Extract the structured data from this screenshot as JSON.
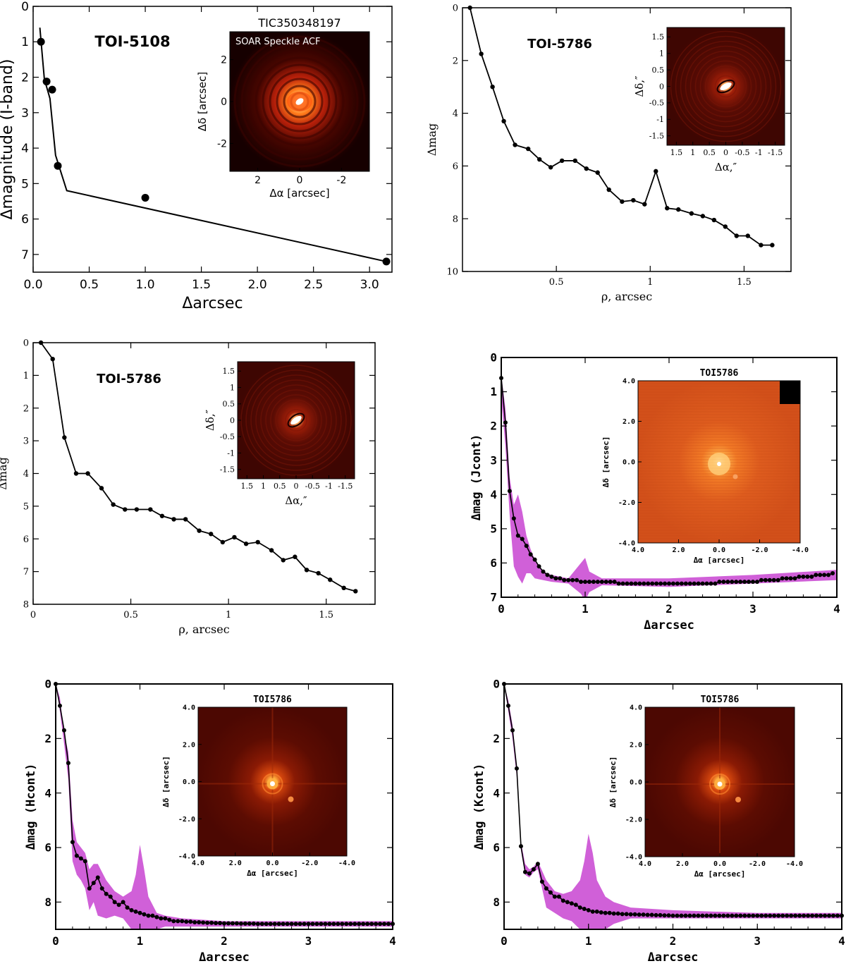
{
  "chart_data": [
    {
      "id": "p1",
      "type": "line",
      "style": "sans",
      "title": "TOI-5108",
      "xlabel": "Δarcsec",
      "ylabel": "Δmagnitude (I-band)",
      "xlim": [
        0,
        3.2
      ],
      "ylim": [
        0,
        7.5
      ],
      "inverted_y": true,
      "xticks": [
        0.0,
        0.5,
        1.0,
        1.5,
        2.0,
        2.5,
        3.0
      ],
      "xtick_labels": [
        "0.0",
        "0.5",
        "1.0",
        "1.5",
        "2.0",
        "2.5",
        "3.0"
      ],
      "yticks": [
        0,
        1,
        2,
        3,
        4,
        5,
        6,
        7
      ],
      "ytick_labels": [
        "0",
        "1",
        "2",
        "3",
        "4",
        "5",
        "6",
        "7"
      ],
      "curve": {
        "x": [
          0.06,
          0.1,
          0.15,
          0.2,
          0.3,
          3.15
        ],
        "y": [
          0.6,
          2.05,
          2.6,
          4.2,
          5.2,
          7.2
        ]
      },
      "points": {
        "x": [
          0.07,
          0.12,
          0.17,
          0.22,
          1.0,
          3.15
        ],
        "y": [
          1.0,
          2.12,
          2.35,
          4.5,
          5.4,
          7.2
        ]
      },
      "inset": {
        "title": "TIC350348197",
        "label": "SOAR Speckle ACF",
        "xlabel": "Δα [arcsec]",
        "ylabel": "Δδ [arcsec]",
        "xticks": [
          "2",
          "0",
          "-2"
        ],
        "yticks": [
          "2",
          "0",
          "-2"
        ]
      }
    },
    {
      "id": "p2",
      "type": "line",
      "style": "serif",
      "title": "TOI-5786",
      "xlabel": "ρ, arcsec",
      "ylabel": "Δmag",
      "xlim": [
        0,
        1.75
      ],
      "ylim": [
        0,
        10
      ],
      "inverted_y": true,
      "xticks": [
        0.5,
        1,
        1.5
      ],
      "xtick_labels": [
        "0.5",
        "1",
        "1.5"
      ],
      "yticks": [
        0,
        2,
        4,
        6,
        8,
        10
      ],
      "ytick_labels": [
        "0",
        "2",
        "4",
        "6",
        "8",
        "10"
      ],
      "curve": {
        "x": [
          0.04,
          0.1,
          0.16,
          0.22,
          0.28,
          0.35,
          0.41,
          0.47,
          0.53,
          0.6,
          0.66,
          0.72,
          0.78,
          0.85,
          0.91,
          0.97,
          1.03,
          1.09,
          1.15,
          1.22,
          1.28,
          1.34,
          1.4,
          1.46,
          1.52,
          1.59,
          1.65
        ],
        "y": [
          0,
          1.75,
          3.0,
          4.3,
          5.2,
          5.35,
          5.75,
          6.05,
          5.8,
          5.8,
          6.1,
          6.25,
          6.9,
          7.35,
          7.3,
          7.45,
          6.2,
          7.6,
          7.65,
          7.8,
          7.9,
          8.05,
          8.3,
          8.65,
          8.65,
          9.0,
          9.0
        ]
      },
      "inset": {
        "xlabel": "Δα,″",
        "ylabel": "Δδ,″",
        "xticks": [
          "1.5",
          "1",
          "0.5",
          "0",
          "-0.5",
          "-1",
          "-1.5"
        ],
        "yticks": [
          "1.5",
          "1",
          "0.5",
          "0",
          "-0.5",
          "-1",
          "-1.5"
        ]
      }
    },
    {
      "id": "p3",
      "type": "line",
      "style": "serif",
      "title": "TOI-5786",
      "xlabel": "ρ, arcsec",
      "ylabel": "Δmag",
      "xlim": [
        0,
        1.75
      ],
      "ylim": [
        0,
        8
      ],
      "inverted_y": true,
      "xticks": [
        0,
        0.5,
        1,
        1.5
      ],
      "xtick_labels": [
        "0",
        "0.5",
        "1",
        "1.5"
      ],
      "yticks": [
        0,
        1,
        2,
        3,
        4,
        5,
        6,
        7,
        8
      ],
      "ytick_labels": [
        "0",
        "1",
        "2",
        "3",
        "4",
        "5",
        "6",
        "7",
        "8"
      ],
      "curve": {
        "x": [
          0.04,
          0.1,
          0.16,
          0.22,
          0.28,
          0.35,
          0.41,
          0.47,
          0.53,
          0.6,
          0.66,
          0.72,
          0.78,
          0.85,
          0.91,
          0.97,
          1.03,
          1.09,
          1.15,
          1.22,
          1.28,
          1.34,
          1.4,
          1.46,
          1.52,
          1.59,
          1.65
        ],
        "y": [
          0,
          0.5,
          2.9,
          4.0,
          4.0,
          4.45,
          4.95,
          5.1,
          5.1,
          5.1,
          5.3,
          5.4,
          5.4,
          5.75,
          5.85,
          6.1,
          5.95,
          6.15,
          6.1,
          6.35,
          6.65,
          6.55,
          6.95,
          7.05,
          7.25,
          7.5,
          7.6
        ]
      },
      "inset": {
        "xlabel": "Δα,″",
        "ylabel": "Δδ,″",
        "xticks": [
          "1.5",
          "1",
          "0.5",
          "0",
          "-0.5",
          "-1",
          "-1.5"
        ],
        "yticks": [
          "1.5",
          "1",
          "0.5",
          "0",
          "-0.5",
          "-1",
          "-1.5"
        ]
      }
    },
    {
      "id": "p4",
      "type": "line",
      "style": "bold",
      "title": "",
      "xlabel": "Δarcsec",
      "ylabel": "Δmag (Jcont)",
      "xlim": [
        0,
        4
      ],
      "ylim": [
        0,
        7
      ],
      "inverted_y": true,
      "xticks": [
        0,
        1,
        2,
        3,
        4
      ],
      "xtick_labels": [
        "0",
        "1",
        "2",
        "3",
        "4"
      ],
      "yticks": [
        0,
        1,
        2,
        3,
        4,
        5,
        6,
        7
      ],
      "ytick_labels": [
        "0",
        "1",
        "2",
        "3",
        "4",
        "5",
        "6",
        "7"
      ],
      "band": {
        "x": [
          0,
          0.05,
          0.1,
          0.15,
          0.2,
          0.25,
          0.3,
          0.35,
          0.4,
          0.5,
          0.6,
          0.8,
          0.95,
          1.0,
          1.05,
          1.2,
          2.0,
          3.0,
          4.0
        ],
        "lo": [
          0.5,
          1.5,
          3.5,
          4.3,
          4.0,
          4.5,
          5.2,
          5.6,
          5.9,
          6.25,
          6.35,
          6.45,
          6.0,
          5.85,
          6.25,
          6.45,
          6.45,
          6.35,
          6.2
        ],
        "hi": [
          1.2,
          2.6,
          4.6,
          6.1,
          6.4,
          6.6,
          6.3,
          6.3,
          6.45,
          6.5,
          6.55,
          6.6,
          6.9,
          7.1,
          6.85,
          6.65,
          6.7,
          6.6,
          6.5
        ]
      },
      "curve": {
        "x": [
          0.0,
          0.05,
          0.1,
          0.15,
          0.2,
          0.25,
          0.3,
          0.35,
          0.4,
          0.45,
          0.5,
          0.55,
          0.6,
          0.65,
          0.7,
          0.75,
          0.8,
          0.85,
          0.9,
          0.95,
          1.0,
          1.05,
          1.1,
          1.15,
          1.2,
          1.25,
          1.3,
          1.35,
          1.4,
          1.45,
          1.5,
          1.55,
          1.6,
          1.65,
          1.7,
          1.75,
          1.8,
          1.85,
          1.9,
          1.95,
          2.0,
          2.05,
          2.1,
          2.15,
          2.2,
          2.25,
          2.3,
          2.35,
          2.4,
          2.45,
          2.5,
          2.55,
          2.6,
          2.65,
          2.7,
          2.75,
          2.8,
          2.85,
          2.9,
          2.95,
          3.0,
          3.05,
          3.1,
          3.15,
          3.2,
          3.25,
          3.3,
          3.35,
          3.4,
          3.45,
          3.5,
          3.55,
          3.6,
          3.65,
          3.7,
          3.75,
          3.8,
          3.85,
          3.9,
          3.95
        ],
        "y": [
          0.6,
          1.9,
          3.9,
          4.7,
          5.2,
          5.3,
          5.5,
          5.75,
          5.9,
          6.1,
          6.25,
          6.35,
          6.4,
          6.45,
          6.45,
          6.5,
          6.5,
          6.5,
          6.5,
          6.55,
          6.55,
          6.55,
          6.55,
          6.55,
          6.55,
          6.55,
          6.55,
          6.55,
          6.6,
          6.6,
          6.6,
          6.6,
          6.6,
          6.6,
          6.6,
          6.6,
          6.6,
          6.6,
          6.6,
          6.6,
          6.6,
          6.6,
          6.6,
          6.6,
          6.6,
          6.6,
          6.6,
          6.6,
          6.6,
          6.6,
          6.6,
          6.6,
          6.55,
          6.55,
          6.55,
          6.55,
          6.55,
          6.55,
          6.55,
          6.55,
          6.55,
          6.55,
          6.5,
          6.5,
          6.5,
          6.5,
          6.5,
          6.45,
          6.45,
          6.45,
          6.45,
          6.4,
          6.4,
          6.4,
          6.4,
          6.35,
          6.35,
          6.35,
          6.35,
          6.3
        ]
      },
      "inset": {
        "title": "TOI5786",
        "xlabel": "Δα [arcsec]",
        "ylabel": "Δδ [arcsec]",
        "xticks": [
          "4.0",
          "2.0",
          "0.0",
          "-2.0",
          "-4.0"
        ],
        "yticks": [
          "4.0",
          "2.0",
          "0.0",
          "-2.0",
          "-4.0"
        ]
      }
    },
    {
      "id": "p5",
      "type": "line",
      "style": "bold",
      "title": "",
      "xlabel": "Δarcsec",
      "ylabel": "Δmag (Hcont)",
      "xlim": [
        0,
        4
      ],
      "ylim": [
        0,
        9
      ],
      "inverted_y": true,
      "xticks": [
        0,
        1,
        2,
        3,
        4
      ],
      "xtick_labels": [
        "0",
        "1",
        "2",
        "3",
        "4"
      ],
      "yticks": [
        0,
        2,
        4,
        6,
        8
      ],
      "ytick_labels": [
        "0",
        "2",
        "4",
        "6",
        "8"
      ],
      "band": {
        "x": [
          0,
          0.05,
          0.1,
          0.15,
          0.2,
          0.25,
          0.3,
          0.35,
          0.4,
          0.45,
          0.5,
          0.6,
          0.7,
          0.8,
          0.9,
          0.95,
          1.0,
          1.05,
          1.1,
          1.2,
          1.3,
          1.5,
          2.0,
          3.0,
          4.0
        ],
        "lo": [
          0.0,
          0.5,
          1.8,
          2.5,
          5.0,
          5.8,
          6.0,
          6.2,
          6.8,
          6.6,
          6.6,
          7.2,
          7.6,
          7.8,
          7.6,
          7.0,
          5.9,
          6.8,
          7.8,
          8.4,
          8.5,
          8.6,
          8.7,
          8.7,
          8.7
        ],
        "hi": [
          0.0,
          1.0,
          2.2,
          3.5,
          6.5,
          7.0,
          7.2,
          7.5,
          8.3,
          8.0,
          8.5,
          8.6,
          8.5,
          8.6,
          9.0,
          9.0,
          9.0,
          9.0,
          9.0,
          9.0,
          8.9,
          8.9,
          8.9,
          8.9,
          8.9
        ]
      },
      "curve": {
        "x": [
          0.0,
          0.05,
          0.1,
          0.15,
          0.2,
          0.25,
          0.3,
          0.35,
          0.4,
          0.45,
          0.5,
          0.55,
          0.6,
          0.65,
          0.7,
          0.75,
          0.8,
          0.85,
          0.9,
          0.95,
          1.0,
          1.05,
          1.1,
          1.15,
          1.2,
          1.25,
          1.3,
          1.35,
          1.4,
          1.45,
          1.5,
          1.55,
          1.6,
          1.65,
          1.7,
          1.75,
          1.8,
          1.85,
          1.9,
          1.95,
          2.0,
          2.05,
          2.1,
          2.15,
          2.2,
          2.25,
          2.3,
          2.35,
          2.4,
          2.45,
          2.5,
          2.55,
          2.6,
          2.65,
          2.7,
          2.75,
          2.8,
          2.85,
          2.9,
          2.95,
          3.0,
          3.05,
          3.1,
          3.15,
          3.2,
          3.25,
          3.3,
          3.35,
          3.4,
          3.45,
          3.5,
          3.55,
          3.6,
          3.65,
          3.7,
          3.75,
          3.8,
          3.85,
          3.9,
          3.95,
          4.0
        ],
        "y": [
          0.0,
          0.8,
          1.7,
          2.9,
          5.8,
          6.3,
          6.4,
          6.5,
          7.5,
          7.3,
          7.1,
          7.5,
          7.7,
          7.8,
          8.0,
          8.1,
          8.0,
          8.2,
          8.3,
          8.35,
          8.4,
          8.45,
          8.5,
          8.5,
          8.55,
          8.6,
          8.6,
          8.65,
          8.7,
          8.7,
          8.7,
          8.72,
          8.72,
          8.74,
          8.74,
          8.75,
          8.76,
          8.76,
          8.77,
          8.77,
          8.78,
          8.78,
          8.78,
          8.78,
          8.79,
          8.79,
          8.79,
          8.79,
          8.8,
          8.8,
          8.8,
          8.8,
          8.8,
          8.8,
          8.8,
          8.8,
          8.8,
          8.8,
          8.8,
          8.8,
          8.8,
          8.8,
          8.8,
          8.8,
          8.8,
          8.8,
          8.8,
          8.8,
          8.8,
          8.8,
          8.8,
          8.8,
          8.8,
          8.8,
          8.8,
          8.8,
          8.8,
          8.8,
          8.8,
          8.8,
          8.8
        ]
      },
      "inset": {
        "title": "TOI5786",
        "xlabel": "Δα [arcsec]",
        "ylabel": "Δδ [arcsec]",
        "xticks": [
          "4.0",
          "2.0",
          "0.0",
          "-2.0",
          "-4.0"
        ],
        "yticks": [
          "4.0",
          "2.0",
          "0.0",
          "-2.0",
          "-4.0"
        ]
      }
    },
    {
      "id": "p6",
      "type": "line",
      "style": "bold",
      "title": "",
      "xlabel": "Δarcsec",
      "ylabel": "Δmag (Kcont)",
      "xlim": [
        0,
        4
      ],
      "ylim": [
        0,
        9
      ],
      "inverted_y": true,
      "xticks": [
        0,
        1,
        2,
        3,
        4
      ],
      "xtick_labels": [
        "0",
        "1",
        "2",
        "3",
        "4"
      ],
      "yticks": [
        0,
        2,
        4,
        6,
        8
      ],
      "ytick_labels": [
        "0",
        "2",
        "4",
        "6",
        "8"
      ],
      "band": {
        "x": [
          0,
          0.05,
          0.1,
          0.15,
          0.2,
          0.25,
          0.3,
          0.35,
          0.4,
          0.5,
          0.6,
          0.7,
          0.8,
          0.9,
          0.95,
          1.0,
          1.05,
          1.1,
          1.2,
          1.3,
          1.5,
          2.0,
          3.0,
          4.0
        ],
        "lo": [
          0.0,
          0.6,
          1.5,
          3.0,
          5.8,
          6.6,
          6.8,
          6.7,
          6.5,
          7.2,
          7.6,
          7.7,
          7.6,
          7.2,
          6.5,
          5.5,
          6.2,
          7.2,
          7.8,
          8.0,
          8.2,
          8.3,
          8.4,
          8.4
        ],
        "hi": [
          0.0,
          1.0,
          2.0,
          3.4,
          6.1,
          7.0,
          7.1,
          6.9,
          6.8,
          8.2,
          8.4,
          8.6,
          8.7,
          9.0,
          9.0,
          9.0,
          9.0,
          9.0,
          9.0,
          8.8,
          8.6,
          8.6,
          8.6,
          8.6
        ]
      },
      "curve": {
        "x": [
          0.0,
          0.05,
          0.1,
          0.15,
          0.2,
          0.25,
          0.3,
          0.35,
          0.4,
          0.45,
          0.5,
          0.55,
          0.6,
          0.65,
          0.7,
          0.75,
          0.8,
          0.85,
          0.9,
          0.95,
          1.0,
          1.05,
          1.1,
          1.15,
          1.2,
          1.25,
          1.3,
          1.35,
          1.4,
          1.45,
          1.5,
          1.55,
          1.6,
          1.65,
          1.7,
          1.75,
          1.8,
          1.85,
          1.9,
          1.95,
          2.0,
          2.05,
          2.1,
          2.15,
          2.2,
          2.25,
          2.3,
          2.35,
          2.4,
          2.45,
          2.5,
          2.55,
          2.6,
          2.65,
          2.7,
          2.75,
          2.8,
          2.85,
          2.9,
          2.95,
          3.0,
          3.05,
          3.1,
          3.15,
          3.2,
          3.25,
          3.3,
          3.35,
          3.4,
          3.45,
          3.5,
          3.55,
          3.6,
          3.65,
          3.7,
          3.75,
          3.8,
          3.85,
          3.9,
          3.95,
          4.0
        ],
        "y": [
          0.0,
          0.8,
          1.7,
          3.1,
          5.95,
          6.9,
          6.95,
          6.8,
          6.6,
          7.25,
          7.5,
          7.65,
          7.8,
          7.8,
          7.95,
          8.0,
          8.05,
          8.1,
          8.2,
          8.25,
          8.3,
          8.35,
          8.35,
          8.38,
          8.4,
          8.4,
          8.42,
          8.42,
          8.44,
          8.44,
          8.45,
          8.45,
          8.46,
          8.46,
          8.47,
          8.47,
          8.48,
          8.48,
          8.49,
          8.49,
          8.5,
          8.5,
          8.5,
          8.5,
          8.5,
          8.5,
          8.5,
          8.5,
          8.5,
          8.5,
          8.5,
          8.5,
          8.5,
          8.5,
          8.5,
          8.5,
          8.5,
          8.5,
          8.5,
          8.5,
          8.5,
          8.5,
          8.5,
          8.5,
          8.5,
          8.5,
          8.5,
          8.5,
          8.5,
          8.5,
          8.5,
          8.5,
          8.5,
          8.5,
          8.5,
          8.5,
          8.5,
          8.5,
          8.5,
          8.5,
          8.5
        ]
      },
      "inset": {
        "title": "TOI5786",
        "xlabel": "Δα [arcsec]",
        "ylabel": "Δδ [arcsec]",
        "xticks": [
          "4.0",
          "2.0",
          "0.0",
          "-2.0",
          "-4.0"
        ],
        "yticks": [
          "4.0",
          "2.0",
          "0.0",
          "-2.0",
          "-4.0"
        ]
      }
    }
  ],
  "colors": {
    "line": "#000000",
    "band": "#d060d8",
    "speckle_bg": "#1a0000",
    "speckle_core": "#ffffff",
    "ao_j_bg": "#d9541c",
    "ao_hk_bg": "#5a0a02"
  }
}
